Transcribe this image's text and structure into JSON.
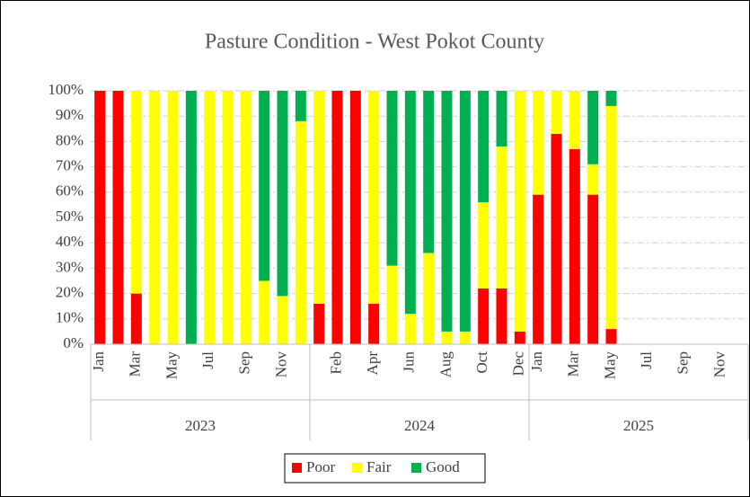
{
  "chart_data": {
    "type": "stacked_bar",
    "title": "Pasture Condition - West Pokot County",
    "categories": [
      "Jan",
      null,
      "Mar",
      null,
      "May",
      null,
      "Jul",
      null,
      "Sep",
      null,
      "Nov",
      null,
      null,
      "Feb",
      null,
      "Apr",
      null,
      "Jun",
      null,
      "Aug",
      null,
      "Oct",
      null,
      "Dec",
      "Jan",
      null,
      "Mar",
      null,
      "May",
      null,
      "Jul",
      null,
      "Sep",
      null,
      "Nov",
      null
    ],
    "groups": [
      "2023",
      "2024",
      "2025"
    ],
    "series": [
      {
        "name": "Poor",
        "color": "#ff0000",
        "values": [
          100,
          100,
          20,
          0,
          0,
          0,
          0,
          0,
          0,
          0,
          0,
          0,
          16,
          100,
          100,
          16,
          0,
          0,
          0,
          0,
          0,
          22,
          22,
          5,
          59,
          83,
          77,
          59,
          6,
          null,
          null,
          null,
          null,
          null,
          null,
          null
        ]
      },
      {
        "name": "Fair",
        "color": "#ffff00",
        "values": [
          0,
          0,
          80,
          100,
          100,
          0,
          100,
          100,
          100,
          25,
          19,
          88,
          84,
          0,
          0,
          84,
          31,
          12,
          36,
          5,
          5,
          34,
          56,
          95,
          41,
          17,
          23,
          12,
          88,
          null,
          null,
          null,
          null,
          null,
          null,
          null
        ]
      },
      {
        "name": "Good",
        "color": "#00b050",
        "values": [
          0,
          0,
          0,
          0,
          0,
          100,
          0,
          0,
          0,
          75,
          81,
          12,
          0,
          0,
          0,
          0,
          69,
          88,
          64,
          95,
          95,
          44,
          22,
          0,
          0,
          0,
          0,
          29,
          6,
          null,
          null,
          null,
          null,
          null,
          null,
          null
        ]
      }
    ],
    "ylim": [
      0,
      100
    ],
    "yticks": [
      {
        "value": 0,
        "label": "0%"
      },
      {
        "value": 10,
        "label": "10%"
      },
      {
        "value": 20,
        "label": "20%"
      },
      {
        "value": 30,
        "label": "30%"
      },
      {
        "value": 40,
        "label": "40%"
      },
      {
        "value": 50,
        "label": "50%"
      },
      {
        "value": 60,
        "label": "60%"
      },
      {
        "value": 70,
        "label": "70%"
      },
      {
        "value": 80,
        "label": "80%"
      },
      {
        "value": 90,
        "label": "90%"
      },
      {
        "value": 100,
        "label": "100%"
      }
    ],
    "grid": true,
    "legend": "bottom"
  }
}
